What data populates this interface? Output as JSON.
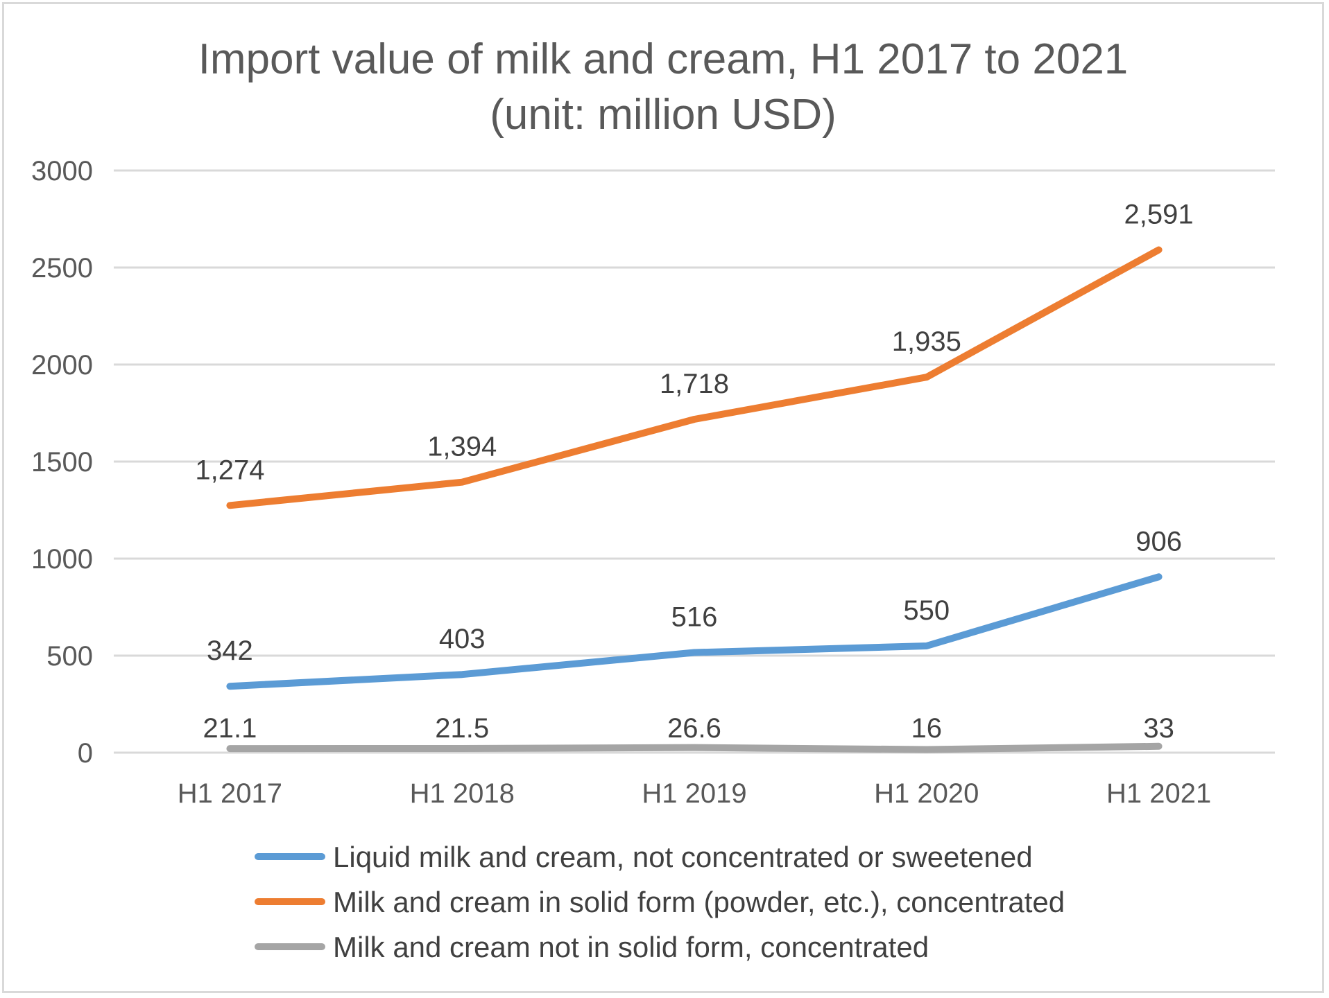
{
  "chart_data": {
    "type": "line",
    "title": "Import value of milk and cream, H1 2017 to 2021",
    "subtitle": "(unit: million USD)",
    "categories": [
      "H1 2017",
      "H1 2018",
      "H1 2019",
      "H1 2020",
      "H1 2021"
    ],
    "ylim": [
      0,
      3000
    ],
    "yticks": [
      0,
      500,
      1000,
      1500,
      2000,
      2500,
      3000
    ],
    "grid": true,
    "legend_position": "bottom",
    "series": [
      {
        "name": "Liquid milk and cream, not concentrated or sweetened",
        "color": "#5b9bd5",
        "values": [
          342,
          403,
          516,
          550,
          906
        ],
        "labels": [
          "342",
          "403",
          "516",
          "550",
          "906"
        ]
      },
      {
        "name": "Milk and cream in solid form (powder, etc.), concentrated",
        "color": "#ed7d31",
        "values": [
          1274,
          1394,
          1718,
          1935,
          2591
        ],
        "labels": [
          "1,274",
          "1,394",
          "1,718",
          "1,935",
          "2,591"
        ]
      },
      {
        "name": "Milk and cream not in solid form, concentrated",
        "color": "#a5a5a5",
        "values": [
          21.1,
          21.5,
          26.6,
          16,
          33
        ],
        "labels": [
          "21.1",
          "21.5",
          "26.6",
          "16",
          "33"
        ]
      }
    ]
  }
}
